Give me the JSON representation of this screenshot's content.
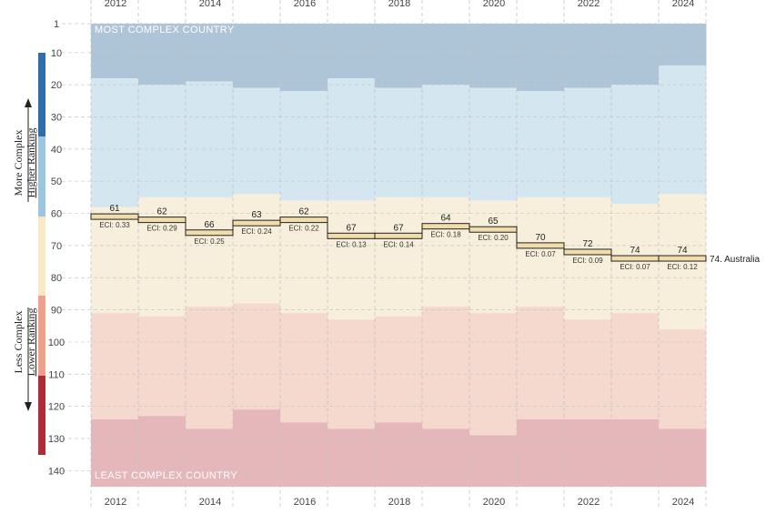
{
  "chart_data": {
    "type": "step",
    "title": "",
    "country": "Australia",
    "end_label": "74. Australia",
    "top_label": "MOST COMPLEX COUNTRY",
    "bottom_label": "LEAST COMPLEX COUNTRY",
    "side_labels": {
      "upper": [
        "More Complex",
        "Higher Ranking"
      ],
      "lower": [
        "Less Complex",
        "Lower Ranking"
      ]
    },
    "y_ticks": [
      1,
      10,
      20,
      30,
      40,
      50,
      60,
      70,
      80,
      90,
      100,
      110,
      120,
      130,
      140
    ],
    "ylim": [
      1,
      145
    ],
    "x_tick_labels": [
      "2012",
      "2014",
      "2016",
      "2018",
      "2020",
      "2022",
      "2024"
    ],
    "years": [
      2012,
      2013,
      2014,
      2015,
      2016,
      2017,
      2018,
      2019,
      2020,
      2021,
      2022,
      2023,
      2024
    ],
    "ranks": [
      61,
      62,
      66,
      63,
      62,
      67,
      67,
      64,
      65,
      70,
      72,
      74,
      74
    ],
    "eci": [
      "ECI: 0.33",
      "ECI: 0.29",
      "ECI: 0.25",
      "ECI: 0.24",
      "ECI: 0.22",
      "ECI: 0.13",
      "ECI: 0.14",
      "ECI: 0.18",
      "ECI: 0.20",
      "ECI: 0.07",
      "ECI: 0.09",
      "ECI: 0.07",
      "ECI: 0.12"
    ],
    "band_boundaries": {
      "blue_dark_to_light": [
        18,
        20,
        19,
        21,
        22,
        18,
        21,
        20,
        21,
        22,
        21,
        20,
        14
      ],
      "blue_to_cream": [
        58,
        55,
        55,
        54,
        56,
        56,
        55,
        55,
        56,
        55,
        55,
        57,
        54
      ],
      "cream_to_pink": [
        91,
        92,
        89,
        88,
        91,
        93,
        92,
        89,
        91,
        89,
        93,
        91,
        96
      ],
      "pink_to_rose": [
        124,
        123,
        127,
        121,
        125,
        127,
        125,
        127,
        129,
        124,
        124,
        124,
        127
      ]
    },
    "band_colors": [
      "#aec5d8",
      "#d4e6ef",
      "#f7efdc",
      "#f5d9ce",
      "#e5b7bb"
    ],
    "side_bar_colors": [
      "#2f6ea8",
      "#9cc6e0",
      "#f8e8c6",
      "#eea08a",
      "#b12a35"
    ],
    "line_color": "#222222",
    "highlight_color": "#f1dcab"
  }
}
